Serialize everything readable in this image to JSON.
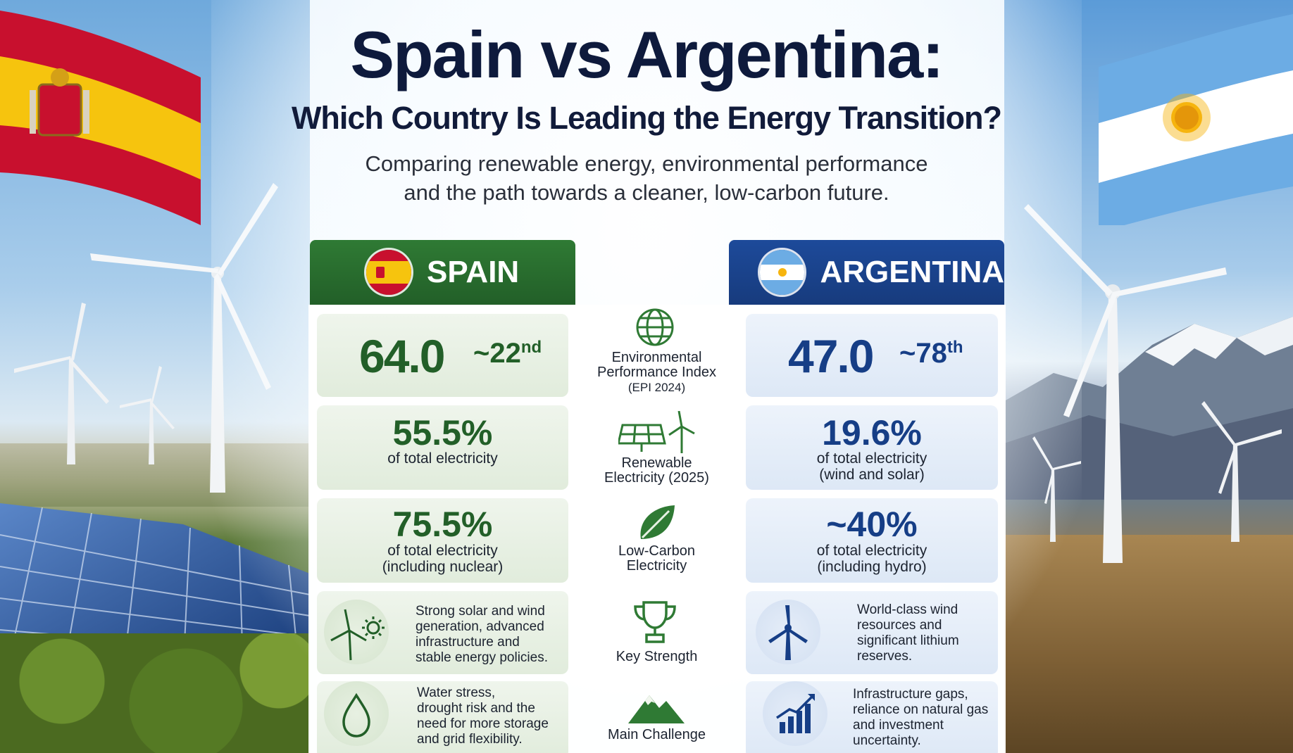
{
  "header": {
    "title": "Spain vs Argentina:",
    "subtitle": "Which Country Is Leading the Energy Transition?",
    "lead_line1": "Comparing renewable energy, environmental performance",
    "lead_line2": "and the path towards a cleaner, low-carbon future."
  },
  "columns": {
    "spain": "SPAIN",
    "argentina": "ARGENTINA"
  },
  "rows": {
    "epi": {
      "label_line1": "Environmental",
      "label_line2": "Performance Index",
      "label_line3": "(EPI 2024)",
      "spain_value": "64.0",
      "spain_rank": "~22",
      "spain_rank_suffix": "nd",
      "argentina_value": "47.0",
      "argentina_rank": "~78",
      "argentina_rank_suffix": "th"
    },
    "renewable": {
      "label_line1": "Renewable",
      "label_line2": "Electricity (2025)",
      "spain_value": "55.5%",
      "spain_sub1": "of total electricity",
      "argentina_value": "19.6%",
      "argentina_sub1": "of total electricity",
      "argentina_sub2": "(wind and solar)"
    },
    "low_carbon": {
      "label_line1": "Low-Carbon",
      "label_line2": "Electricity",
      "spain_value": "75.5%",
      "spain_sub1": "of total electricity",
      "spain_sub2": "(including nuclear)",
      "argentina_value": "~40%",
      "argentina_sub1": "of total electricity",
      "argentina_sub2": "(including hydro)"
    },
    "strength": {
      "label": "Key Strength",
      "spain_lines": [
        "Strong solar and wind",
        "generation, advanced",
        "infrastructure and",
        "stable energy policies."
      ],
      "argentina_lines": [
        "World-class wind",
        "resources and",
        "significant lithium",
        "reserves."
      ]
    },
    "challenge": {
      "label": "Main Challenge",
      "spain_lines": [
        "Water stress,",
        "drought risk and the",
        "need for more storage",
        "and grid flexibility."
      ],
      "argentina_lines": [
        "Infrastructure gaps,",
        "reliance on natural gas",
        "and investment",
        "uncertainty."
      ]
    }
  },
  "colors": {
    "spain_green": "#225f28",
    "argentina_blue": "#163e86",
    "title_navy": "#0e1a3c",
    "spain_red": "#c8102e",
    "spain_yellow": "#f6c40e",
    "argentina_sky": "#6cace4"
  },
  "icons": {
    "epi": "globe-icon",
    "renewable": "solar-panel-wind-icon",
    "low_carbon": "leaf-icon",
    "strength": "trophy-icon",
    "challenge": "mountain-icon",
    "spain_strength": "wind-sun-icon",
    "spain_challenge": "water-drop-icon",
    "argentina_strength": "wind-turbine-icon",
    "argentina_challenge": "growth-chart-icon"
  }
}
